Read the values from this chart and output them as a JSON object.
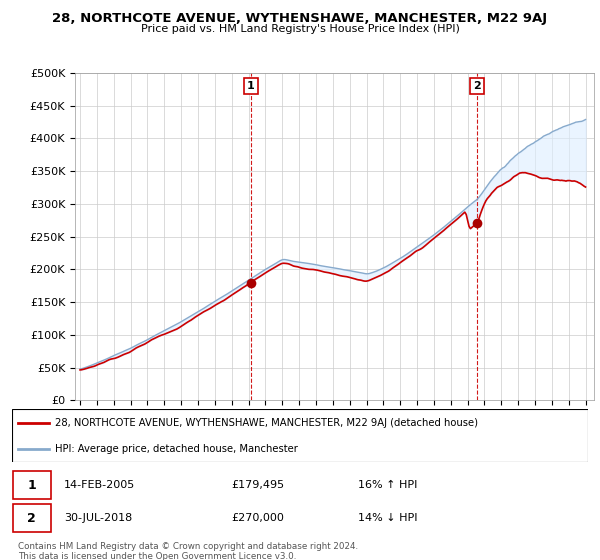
{
  "title": "28, NORTHCOTE AVENUE, WYTHENSHAWE, MANCHESTER, M22 9AJ",
  "subtitle": "Price paid vs. HM Land Registry's House Price Index (HPI)",
  "ylabel_ticks": [
    "£0",
    "£50K",
    "£100K",
    "£150K",
    "£200K",
    "£250K",
    "£300K",
    "£350K",
    "£400K",
    "£450K",
    "£500K"
  ],
  "ytick_vals": [
    0,
    50000,
    100000,
    150000,
    200000,
    250000,
    300000,
    350000,
    400000,
    450000,
    500000
  ],
  "ylim": [
    0,
    500000
  ],
  "legend_line1": "28, NORTHCOTE AVENUE, WYTHENSHAWE, MANCHESTER, M22 9AJ (detached house)",
  "legend_line2": "HPI: Average price, detached house, Manchester",
  "marker1_date": "14-FEB-2005",
  "marker1_price": "£179,495",
  "marker1_hpi": "16% ↑ HPI",
  "marker2_date": "30-JUL-2018",
  "marker2_price": "£270,000",
  "marker2_hpi": "14% ↓ HPI",
  "footnote": "Contains HM Land Registry data © Crown copyright and database right 2024.\nThis data is licensed under the Open Government Licence v3.0.",
  "line_color_red": "#cc0000",
  "line_color_blue": "#88aacc",
  "fill_color_blue": "#ddeeff",
  "marker_vline_color": "#cc0000",
  "background_color": "#ffffff",
  "grid_color": "#cccccc",
  "t1": 2005.12,
  "t2": 2018.58,
  "p1": 179495,
  "p2": 270000
}
